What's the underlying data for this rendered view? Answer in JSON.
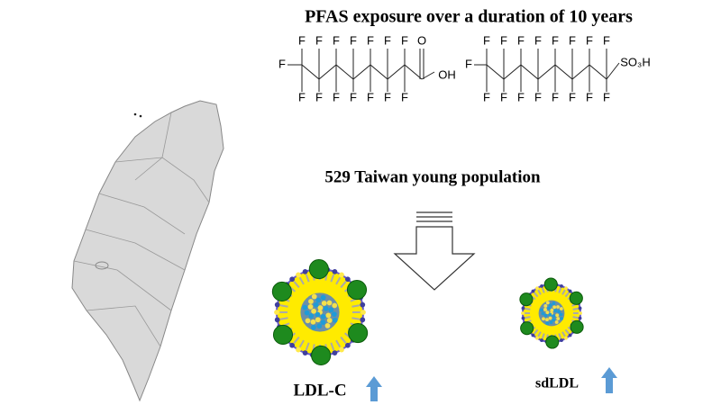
{
  "header": {
    "title": "PFAS exposure over a duration of 10 years"
  },
  "molecules": [
    {
      "atoms": [
        "F",
        "F",
        "F",
        "F",
        "F",
        "F",
        "F",
        "F",
        "F",
        "F",
        "F",
        "F",
        "F",
        "F",
        "F",
        "O",
        "OH"
      ]
    },
    {
      "atoms": [
        "F",
        "F",
        "F",
        "F",
        "F",
        "F",
        "F",
        "F",
        "F",
        "F",
        "F",
        "F",
        "F",
        "F",
        "F",
        "F",
        "F",
        "SO₃H"
      ]
    }
  ],
  "population": "529 Taiwan young population",
  "particles": [
    {
      "label": "LDL-C"
    },
    {
      "label": "sdLDL"
    }
  ]
}
